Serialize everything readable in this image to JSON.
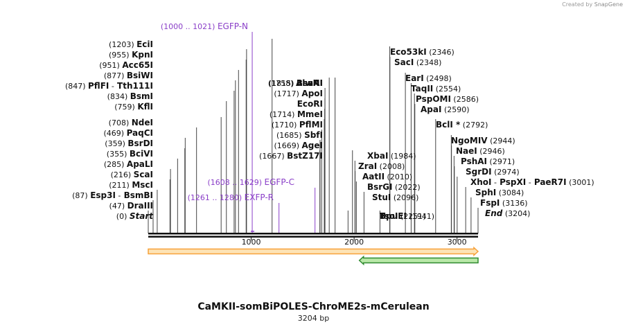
{
  "credit": {
    "prefix": "Created by",
    "brand": "SnapGene"
  },
  "map": {
    "title": "CaMKII-somBiPOLES-ChroME2s-mCerulean",
    "length_label": "3204 bp",
    "length_bp": 3204,
    "ruler_ticks": [
      {
        "bp": 1000,
        "label": "1000"
      },
      {
        "bp": 2000,
        "label": "2000"
      },
      {
        "bp": 3000,
        "label": "3000"
      }
    ]
  },
  "sites_left": [
    {
      "id": "s0",
      "pos": "(0)",
      "names": [
        {
          "t": "Start",
          "i": true
        }
      ],
      "bp": 0
    },
    {
      "id": "s1",
      "pos": "(47)",
      "names": [
        {
          "t": "DraIII"
        }
      ],
      "bp": 47
    },
    {
      "id": "s2",
      "pos": "(87)",
      "names": [
        {
          "t": "Esp3I"
        },
        {
          "t": "-",
          "sep": true
        },
        {
          "t": "BsmBI"
        }
      ],
      "bp": 87
    },
    {
      "id": "s3",
      "pos": "(211)",
      "names": [
        {
          "t": "MscI"
        }
      ],
      "bp": 211
    },
    {
      "id": "s4",
      "pos": "(216)",
      "names": [
        {
          "t": "ScaI"
        }
      ],
      "bp": 216
    },
    {
      "id": "s5",
      "pos": "(285)",
      "names": [
        {
          "t": "ApaLI"
        }
      ],
      "bp": 285
    },
    {
      "id": "s6",
      "pos": "(355)",
      "names": [
        {
          "t": "BciVI"
        }
      ],
      "bp": 355
    },
    {
      "id": "s7",
      "pos": "(359)",
      "names": [
        {
          "t": "BsrDI"
        }
      ],
      "bp": 359
    },
    {
      "id": "s8",
      "pos": "(469)",
      "names": [
        {
          "t": "PaqCI"
        }
      ],
      "bp": 469
    },
    {
      "id": "s9",
      "pos": "(708)",
      "names": [
        {
          "t": "NdeI"
        }
      ],
      "bp": 708
    },
    {
      "id": "s10",
      "pos": "(759)",
      "names": [
        {
          "t": "KflI"
        }
      ],
      "bp": 759
    },
    {
      "id": "s11",
      "pos": "(834)",
      "names": [
        {
          "t": "BsmI"
        }
      ],
      "bp": 834
    },
    {
      "id": "s12",
      "pos": "(847)",
      "names": [
        {
          "t": "PflFI"
        },
        {
          "t": "-",
          "sep": true
        },
        {
          "t": "Tth111I"
        }
      ],
      "bp": 847
    },
    {
      "id": "s13",
      "pos": "(877)",
      "names": [
        {
          "t": "BsiWI"
        }
      ],
      "bp": 877
    },
    {
      "id": "s14",
      "pos": "(951)",
      "names": [
        {
          "t": "Acc65I"
        }
      ],
      "bp": 951
    },
    {
      "id": "s15",
      "pos": "(955)",
      "names": [
        {
          "t": "KpnI"
        }
      ],
      "bp": 955
    },
    {
      "id": "s16",
      "pos": "(1203)",
      "names": [
        {
          "t": "EciI"
        }
      ],
      "bp": 1203
    }
  ],
  "sites_mid": [
    {
      "id": "m0",
      "pos": "(1667)",
      "names": [
        {
          "t": "BstZ17I"
        }
      ],
      "bp": 1667
    },
    {
      "id": "m1",
      "pos": "(1669)",
      "names": [
        {
          "t": "AgeI"
        }
      ],
      "bp": 1669
    },
    {
      "id": "m2",
      "pos": "(1685)",
      "names": [
        {
          "t": "SbfI"
        }
      ],
      "bp": 1685
    },
    {
      "id": "m3",
      "pos": "(1710)",
      "names": [
        {
          "t": "PflMI"
        }
      ],
      "bp": 1710
    },
    {
      "id": "m4",
      "pos": "(1714)",
      "names": [
        {
          "t": "MmeI"
        }
      ],
      "bp": 1714
    },
    {
      "id": "m5",
      "pos": "",
      "names": [
        {
          "t": "EcoRI"
        }
      ],
      "bp": 1716
    },
    {
      "id": "m6",
      "pos": "(1717)",
      "names": [
        {
          "t": "ApoI"
        }
      ],
      "bp": 1717
    },
    {
      "id": "m7",
      "pos": "(1758)",
      "names": [
        {
          "t": "AlwNI"
        }
      ],
      "bp": 1758
    },
    {
      "id": "m8",
      "pos": "(1815)",
      "names": [
        {
          "t": "BsaAI"
        }
      ],
      "bp": 1815
    }
  ],
  "sites_right": [
    {
      "id": "r0",
      "pos": "(1941)",
      "names": [
        {
          "t": "BpuEI"
        }
      ],
      "bp": 1941
    },
    {
      "id": "r1",
      "pos": "(1984)",
      "names": [
        {
          "t": "XbaI"
        }
      ],
      "bp": 1984
    },
    {
      "id": "r2",
      "pos": "(2008)",
      "names": [
        {
          "t": "ZraI"
        }
      ],
      "bp": 2008
    },
    {
      "id": "r3",
      "pos": "(2010)",
      "names": [
        {
          "t": "AatII"
        }
      ],
      "bp": 2010
    },
    {
      "id": "r4",
      "pos": "(2022)",
      "names": [
        {
          "t": "BsrGI"
        }
      ],
      "bp": 2022
    },
    {
      "id": "r5",
      "pos": "(2096)",
      "names": [
        {
          "t": "StuI"
        }
      ],
      "bp": 2096
    },
    {
      "id": "r6",
      "pos": "(2251)",
      "names": [
        {
          "t": "TsoI"
        }
      ],
      "bp": 2251
    },
    {
      "id": "r7",
      "pos": "(2346)",
      "names": [
        {
          "t": "Eco53kI"
        }
      ],
      "bp": 2346
    },
    {
      "id": "r8",
      "pos": "(2348)",
      "names": [
        {
          "t": "SacI"
        }
      ],
      "bp": 2348
    },
    {
      "id": "r9",
      "pos": "(2498)",
      "names": [
        {
          "t": "EarI"
        }
      ],
      "bp": 2498
    },
    {
      "id": "r10",
      "pos": "(2554)",
      "names": [
        {
          "t": "TaqII"
        }
      ],
      "bp": 2554
    },
    {
      "id": "r11",
      "pos": "(2586)",
      "names": [
        {
          "t": "PspOMI"
        }
      ],
      "bp": 2586
    },
    {
      "id": "r12",
      "pos": "(2590)",
      "names": [
        {
          "t": "ApaI"
        }
      ],
      "bp": 2590
    },
    {
      "id": "r13",
      "pos": "(2792)",
      "names": [
        {
          "t": "BclI *"
        }
      ],
      "bp": 2792
    },
    {
      "id": "r14",
      "pos": "(2944)",
      "names": [
        {
          "t": "NgoMIV"
        }
      ],
      "bp": 2944
    },
    {
      "id": "r15",
      "pos": "(2946)",
      "names": [
        {
          "t": "NaeI"
        }
      ],
      "bp": 2946
    },
    {
      "id": "r16",
      "pos": "(2971)",
      "names": [
        {
          "t": "PshAI"
        }
      ],
      "bp": 2971
    },
    {
      "id": "r17",
      "pos": "(2974)",
      "names": [
        {
          "t": "SgrDI"
        }
      ],
      "bp": 2974
    },
    {
      "id": "r18",
      "pos": "(3001)",
      "names": [
        {
          "t": "XhoI"
        },
        {
          "t": "-",
          "sep": true
        },
        {
          "t": "PspXI"
        },
        {
          "t": "-",
          "sep": true
        },
        {
          "t": "PaeR7I"
        }
      ],
      "bp": 3001
    },
    {
      "id": "r19",
      "pos": "(3084)",
      "names": [
        {
          "t": "SphI"
        }
      ],
      "bp": 3084
    },
    {
      "id": "r20",
      "pos": "(3136)",
      "names": [
        {
          "t": "FspI"
        }
      ],
      "bp": 3136
    },
    {
      "id": "r21",
      "pos": "(3204)",
      "names": [
        {
          "t": "End",
          "i": true
        }
      ],
      "bp": 3204
    }
  ],
  "primers": [
    {
      "id": "p0",
      "name": "EGFP-N",
      "range": "(1000 .. 1021)",
      "bp": 1010,
      "strand": "forward"
    },
    {
      "id": "p1",
      "name": "EGFP-C",
      "range": "(1608 .. 1629)",
      "bp": 1620,
      "strand": "reverse"
    },
    {
      "id": "p2",
      "name": "EXFP-R",
      "range": "(1261 .. 1280)",
      "bp": 1270,
      "strand": "reverse"
    }
  ],
  "features": [
    {
      "id": "f0",
      "name": "orange-feature-arrow",
      "start_bp": 0,
      "end_bp": 3204,
      "color": "#f7a23a",
      "fill": "#fde3b5",
      "direction": "forward"
    },
    {
      "id": "f1",
      "name": "green-feature-arrow",
      "start_bp": 2051,
      "end_bp": 3204,
      "color": "#2f8a2f",
      "fill": "#b9e8a8",
      "direction": "reverse"
    }
  ],
  "colors": {
    "primer": "#8a3ec8",
    "backbone": "#111111",
    "site_line": "#444444"
  }
}
